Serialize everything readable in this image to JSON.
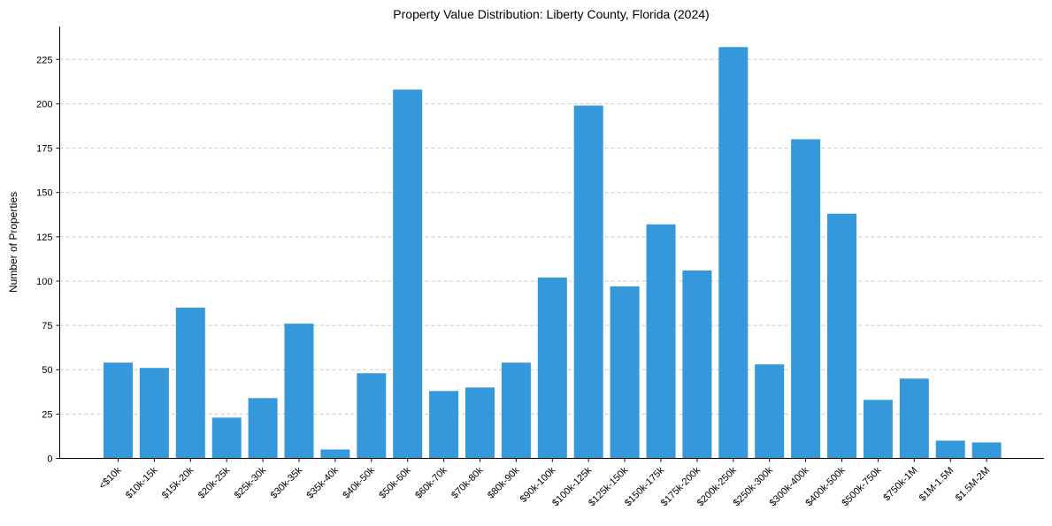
{
  "chart_data": {
    "type": "bar",
    "title": "Property Value Distribution: Liberty County, Florida (2024)",
    "xlabel": "",
    "ylabel": "Number of Properties",
    "categories": [
      "<$10k",
      "$10k-15k",
      "$15k-20k",
      "$20k-25k",
      "$25k-30k",
      "$30k-35k",
      "$35k-40k",
      "$40k-50k",
      "$50k-60k",
      "$60k-70k",
      "$70k-80k",
      "$80k-90k",
      "$90k-100k",
      "$100k-125k",
      "$125k-150k",
      "$150k-175k",
      "$175k-200k",
      "$200k-250k",
      "$250k-300k",
      "$300k-400k",
      "$400k-500k",
      "$500k-750k",
      "$750k-1M",
      "$1M-1.5M",
      "$1.5M-2M"
    ],
    "values": [
      54,
      51,
      85,
      23,
      34,
      76,
      5,
      48,
      208,
      38,
      40,
      54,
      102,
      199,
      97,
      132,
      106,
      232,
      53,
      180,
      138,
      33,
      45,
      10,
      9
    ],
    "yticks": [
      0,
      25,
      50,
      75,
      100,
      125,
      150,
      175,
      200,
      225
    ],
    "ylim": [
      0,
      243.6
    ],
    "grid": "y-dashed",
    "legend": "none",
    "bar_color": "#3498db"
  }
}
